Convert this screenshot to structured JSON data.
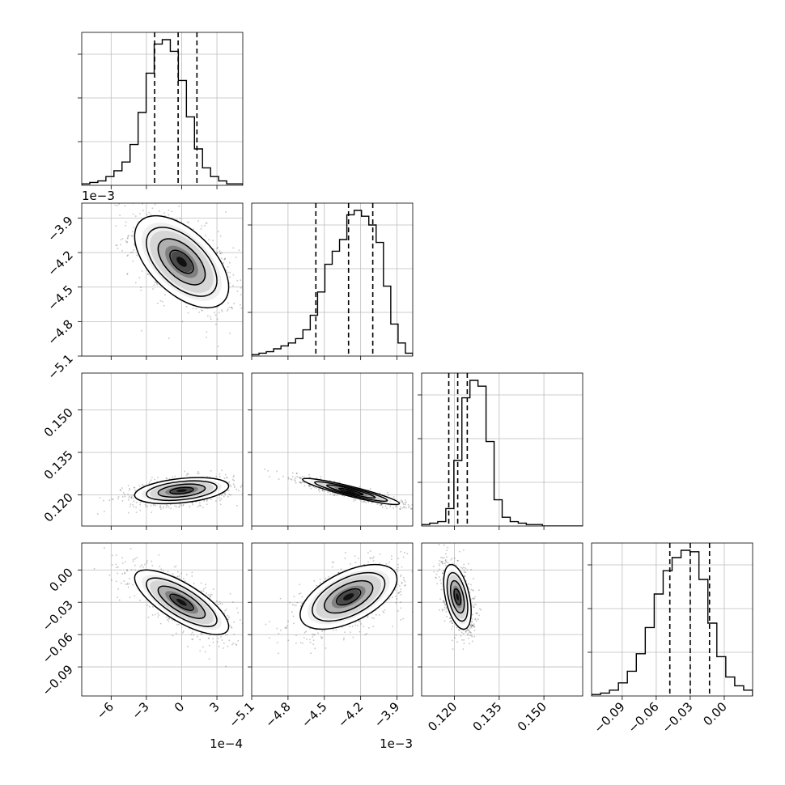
{
  "chart_data": {
    "type": "corner",
    "title": "",
    "variables": [
      {
        "xlim": [
          -0.00085,
          0.00052
        ],
        "ticks": [
          -0.0006,
          -0.0003,
          0.0,
          0.0003
        ],
        "tick_labels": [
          "−6",
          "−3",
          "0",
          "3"
        ],
        "offset": "1e−4",
        "quantiles": [
          -0.00023,
          -3e-05,
          0.00013
        ],
        "hist": [
          1,
          2,
          3,
          6,
          10,
          16,
          28,
          50,
          77,
          97,
          100,
          92,
          72,
          47,
          25,
          12,
          6,
          3,
          1,
          1
        ]
      },
      {
        "xlim": [
          -0.0051,
          -0.00377
        ],
        "ticks": [
          -0.0051,
          -0.0048,
          -0.0045,
          -0.0042,
          -0.0039
        ],
        "tick_labels": [
          "−5.1",
          "−4.8",
          "−4.5",
          "−4.2",
          "−3.9"
        ],
        "offset": "1e−3",
        "quantiles": [
          -0.00457,
          -0.0043,
          -0.0041
        ],
        "hist": [
          1,
          2,
          3,
          5,
          7,
          9,
          12,
          18,
          28,
          44,
          63,
          72,
          80,
          97,
          100,
          96,
          90,
          78,
          48,
          22,
          9,
          2
        ]
      },
      {
        "xlim": [
          0.109,
          0.163
        ],
        "ticks": [
          0.12,
          0.135,
          0.15
        ],
        "tick_labels": [
          "0.120",
          "0.135",
          "0.150"
        ],
        "offset": "",
        "quantiles": [
          0.1181,
          0.1211,
          0.1243
        ],
        "hist": [
          1,
          2,
          3,
          12,
          45,
          88,
          100,
          96,
          58,
          18,
          6,
          3,
          2,
          1,
          1,
          0,
          0,
          0,
          0,
          0
        ]
      },
      {
        "xlim": [
          -0.117,
          0.025
        ],
        "ticks": [
          -0.09,
          -0.06,
          -0.03,
          0.0
        ],
        "tick_labels": [
          "−0.09",
          "−0.06",
          "−0.03",
          "0.00"
        ],
        "offset": "",
        "quantiles": [
          -0.048,
          -0.03,
          -0.013
        ],
        "hist": [
          1,
          2,
          4,
          9,
          17,
          29,
          47,
          70,
          86,
          95,
          100,
          99,
          80,
          50,
          27,
          13,
          7,
          4
        ]
      }
    ],
    "pairs": [
      {
        "row": 1,
        "col": 0,
        "mean": [
          0.0,
          -0.00428
        ],
        "sd": [
          0.0002,
          0.0002
        ],
        "corr": -0.55
      },
      {
        "row": 2,
        "col": 0,
        "mean": [
          0.0,
          0.1215
        ],
        "sd": [
          0.0002,
          0.0023
        ],
        "corr": 0.35
      },
      {
        "row": 2,
        "col": 1,
        "mean": [
          -0.00428,
          0.1212
        ],
        "sd": [
          0.0002,
          0.0023
        ],
        "corr": -0.92
      },
      {
        "row": 3,
        "col": 0,
        "mean": [
          0.0,
          -0.03
        ],
        "sd": [
          0.0002,
          0.015
        ],
        "corr": -0.75
      },
      {
        "row": 3,
        "col": 1,
        "mean": [
          -0.0043,
          -0.025
        ],
        "sd": [
          0.0002,
          0.015
        ],
        "corr": 0.55
      },
      {
        "row": 3,
        "col": 2,
        "mean": [
          0.121,
          -0.025
        ],
        "sd": [
          0.0023,
          0.015
        ],
        "corr": -0.45
      }
    ],
    "grid": true
  }
}
